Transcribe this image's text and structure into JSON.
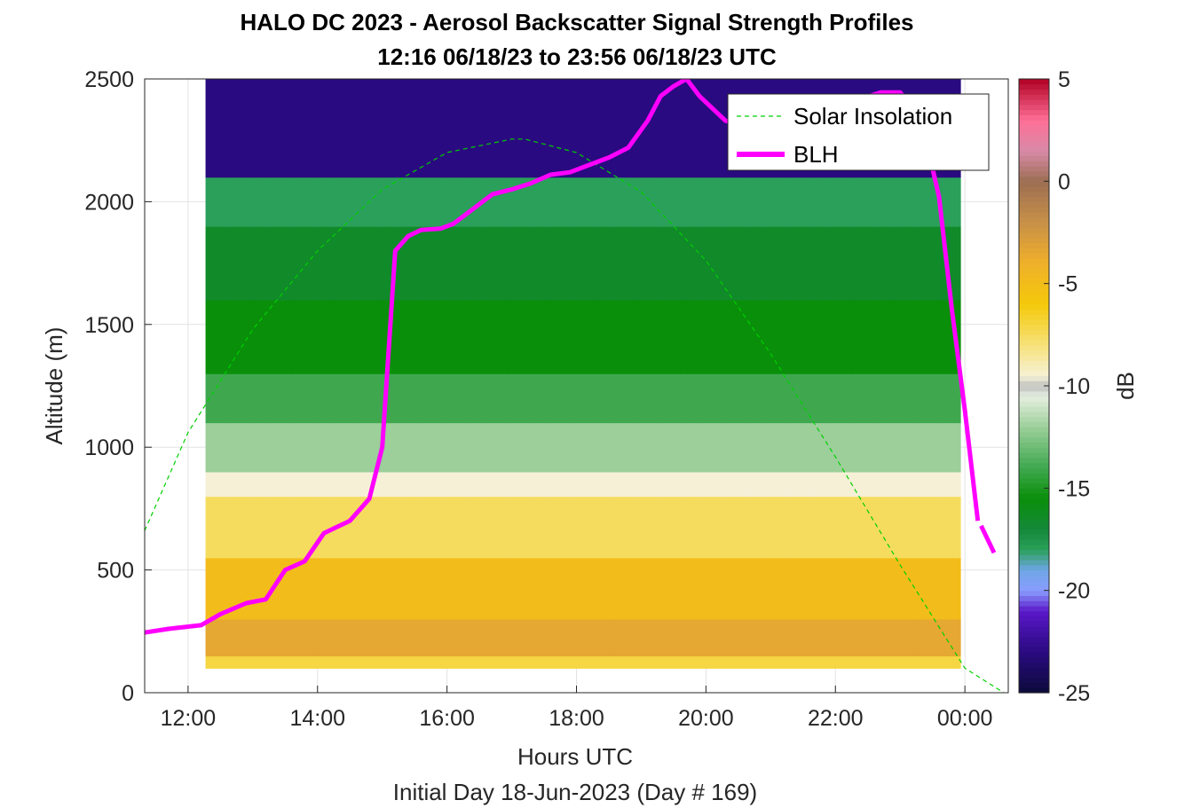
{
  "chart_data": {
    "type": "heatmap",
    "title": "HALO DC 2023 - Aerosol Backscatter Signal Strength Profiles",
    "subtitle": "12:16 06/18/23 to 23:56 06/18/23  UTC",
    "xlabel": "Hours UTC",
    "ylabel": "Altitude (m)",
    "footnote": "Initial Day 18-Jun-2023 (Day # 169)",
    "xlim": [
      11.33,
      24.67
    ],
    "ylim": [
      0,
      2500
    ],
    "x_ticks": [
      12,
      14,
      16,
      18,
      20,
      22,
      24
    ],
    "x_tick_labels": [
      "12:00",
      "14:00",
      "16:00",
      "18:00",
      "20:00",
      "22:00",
      "00:00"
    ],
    "y_ticks": [
      0,
      500,
      1000,
      1500,
      2000,
      2500
    ],
    "y_tick_labels": [
      "0",
      "500",
      "1000",
      "1500",
      "2000",
      "2500"
    ],
    "grid": true,
    "heatmap": {
      "x_start": 12.27,
      "x_end": 23.93,
      "y_bottom": 100,
      "y_top": 2500,
      "time_bins": 35,
      "rows_bottom_to_top": [
        {
          "alt_from": 100,
          "alt_to": 150,
          "value": -7
        },
        {
          "alt_from": 150,
          "alt_to": 300,
          "value": -3.5
        },
        {
          "alt_from": 300,
          "alt_to": 550,
          "value": -5
        },
        {
          "alt_from": 550,
          "alt_to": 800,
          "value": -7.5
        },
        {
          "alt_from": 800,
          "alt_to": 900,
          "value": -9.5
        },
        {
          "alt_from": 900,
          "alt_to": 1100,
          "value": -12
        },
        {
          "alt_from": 1100,
          "alt_to": 1300,
          "value": -14
        },
        {
          "alt_from": 1300,
          "alt_to": 1600,
          "value": -15.5
        },
        {
          "alt_from": 1600,
          "alt_to": 1900,
          "value": -16.5
        },
        {
          "alt_from": 1900,
          "alt_to": 2100,
          "value": -18
        },
        {
          "alt_from": 2100,
          "alt_to": 2500,
          "value": -23
        }
      ]
    },
    "colorbar": {
      "label": "dB",
      "range": [
        -25,
        5
      ],
      "ticks": [
        -25,
        -20,
        -15,
        -10,
        -5,
        0,
        5
      ],
      "tick_labels": [
        "-25",
        "-20",
        "-15",
        "-10",
        "-5",
        "0",
        "5"
      ]
    },
    "series": [
      {
        "name": "Solar Insolation",
        "style": "dashed",
        "color": "#00d000",
        "x": [
          11.33,
          12,
          13,
          14,
          15,
          16,
          17,
          17.2,
          18,
          19,
          20,
          21,
          22,
          23,
          24,
          24.6
        ],
        "y": [
          660,
          1060,
          1480,
          1800,
          2050,
          2200,
          2255,
          2255,
          2200,
          2040,
          1760,
          1380,
          960,
          520,
          100,
          0
        ]
      },
      {
        "name": "BLH",
        "style": "solid",
        "color": "#ff00ff",
        "x": [
          11.33,
          11.7,
          12.2,
          12.5,
          12.9,
          13.2,
          13.5,
          13.8,
          14.1,
          14.5,
          14.8,
          15.0,
          15.2,
          15.4,
          15.6,
          15.9,
          16.1,
          16.4,
          16.7,
          17.0,
          17.3,
          17.6,
          17.9,
          18.2,
          18.5,
          18.8,
          19.1,
          19.3,
          19.5,
          19.7,
          19.9,
          20.1,
          20.3,
          20.6,
          20.9,
          21.2,
          21.5,
          21.8,
          22.1,
          22.4,
          22.7,
          23.0,
          23.2,
          23.4,
          23.6,
          23.8,
          24.0,
          24.2
        ],
        "y": [
          245,
          260,
          275,
          320,
          365,
          380,
          500,
          535,
          650,
          700,
          790,
          1000,
          1800,
          1860,
          1885,
          1890,
          1910,
          1970,
          2030,
          2050,
          2075,
          2110,
          2120,
          2150,
          2180,
          2220,
          2330,
          2430,
          2470,
          2500,
          2430,
          2380,
          2330,
          2310,
          2300,
          2320,
          2350,
          2380,
          2400,
          2420,
          2445,
          2445,
          2380,
          2250,
          2020,
          1560,
          1150,
          700
        ]
      },
      {
        "name": "",
        "style": "solid",
        "color": "#ff00ff",
        "x": [
          24.25,
          24.45
        ],
        "y": [
          680,
          570
        ]
      }
    ],
    "legend": {
      "position": "top-right",
      "entries": [
        "Solar Insolation",
        "BLH"
      ]
    }
  }
}
